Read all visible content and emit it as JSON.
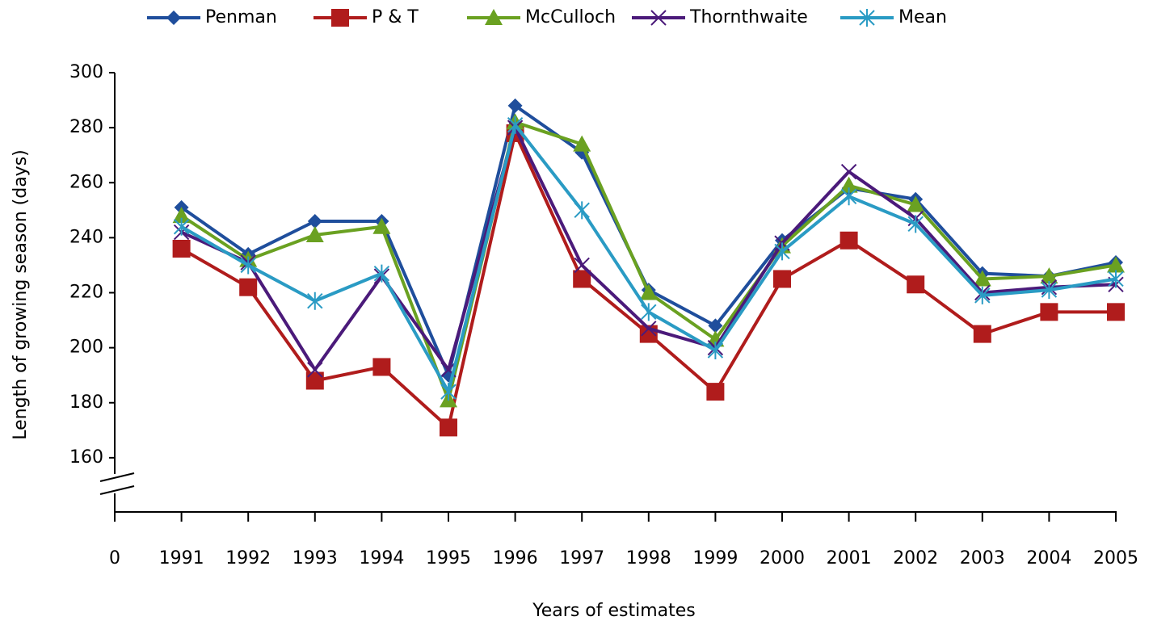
{
  "chart_data": {
    "type": "line",
    "x_label": "Years of estimates",
    "y_label": "Length of growing season (days)",
    "categories": [
      "0",
      "1991",
      "1992",
      "1993",
      "1994",
      "1995",
      "1996",
      "1997",
      "1998",
      "1999",
      "2000",
      "2001",
      "2002",
      "2003",
      "2004",
      "2005"
    ],
    "series": [
      {
        "name": "Penman",
        "color": "#1f4e9c",
        "marker": "diamond",
        "values": [
          null,
          251,
          234,
          246,
          246,
          190,
          288,
          271,
          221,
          208,
          239,
          258,
          254,
          227,
          226,
          231
        ]
      },
      {
        "name": "P & T",
        "color": "#b01c1c",
        "marker": "square",
        "values": [
          null,
          236,
          222,
          188,
          193,
          171,
          278,
          225,
          205,
          184,
          225,
          239,
          223,
          205,
          213,
          213
        ]
      },
      {
        "name": "McCulloch",
        "color": "#6aa121",
        "marker": "triangle",
        "values": [
          null,
          248,
          232,
          241,
          244,
          181,
          282,
          274,
          220,
          203,
          237,
          259,
          252,
          225,
          226,
          230
        ]
      },
      {
        "name": "Thornthwaite",
        "color": "#4b1a7a",
        "marker": "x",
        "values": [
          null,
          242,
          231,
          192,
          226,
          192,
          280,
          230,
          207,
          200,
          238,
          264,
          247,
          220,
          222,
          223
        ]
      },
      {
        "name": "Mean",
        "color": "#2a9bc4",
        "marker": "star",
        "values": [
          null,
          244,
          230,
          217,
          227,
          184,
          281,
          250,
          213,
          199,
          235,
          255,
          245,
          219,
          221,
          225
        ]
      }
    ],
    "ylim": [
      140,
      300
    ],
    "yticks": [
      160,
      180,
      200,
      220,
      240,
      260,
      280,
      300
    ],
    "legend": "top"
  }
}
